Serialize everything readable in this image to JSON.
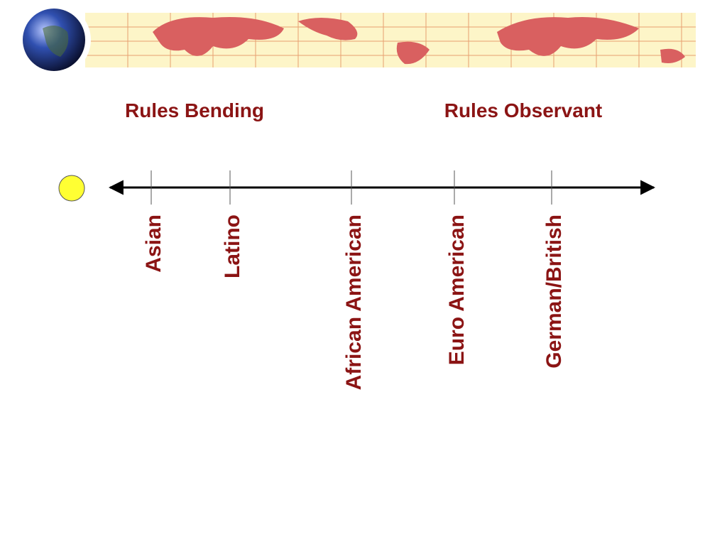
{
  "left_label": "Rules Bending",
  "right_label": "Rules Observant",
  "groups": [
    "Asian",
    "Latino",
    "African American",
    "Euro American",
    "German/British"
  ]
}
